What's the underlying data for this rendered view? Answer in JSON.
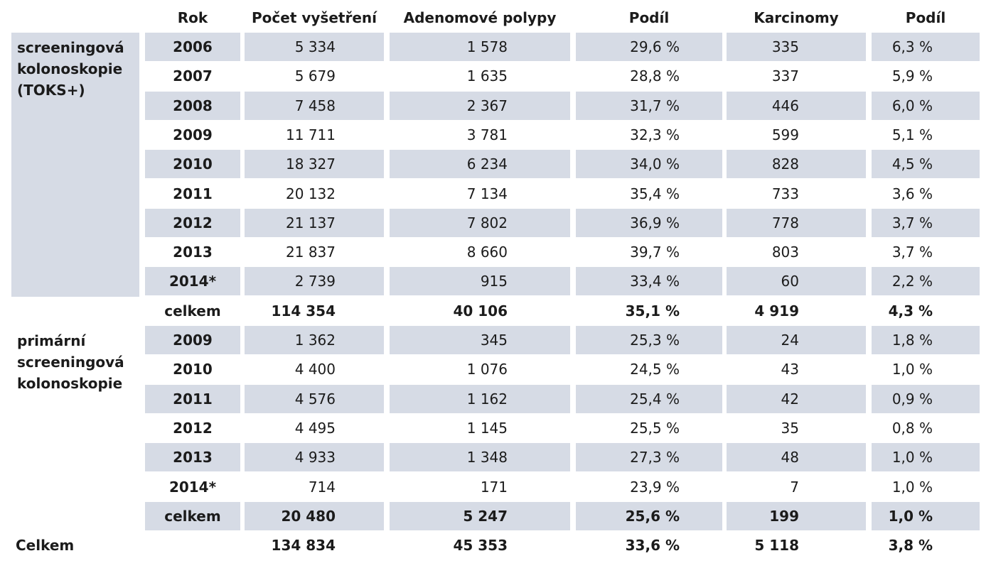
{
  "headers": [
    "Rok",
    "Počet vyšetření",
    "Adenomové polypy",
    "Podíl",
    "Karcinomy",
    "Podíl"
  ],
  "groups": [
    {
      "label": "screeningová\nkolonoskopie\n(TOKS+)",
      "rows": [
        {
          "year": "2006",
          "count": "5 334",
          "polyps": "1 578",
          "share_polyps": "29,6 %",
          "carcinoma": "335",
          "share_carcinoma": "6,3 %"
        },
        {
          "year": "2007",
          "count": "5 679",
          "polyps": "1 635",
          "share_polyps": "28,8 %",
          "carcinoma": "337",
          "share_carcinoma": "5,9 %"
        },
        {
          "year": "2008",
          "count": "7 458",
          "polyps": "2 367",
          "share_polyps": "31,7 %",
          "carcinoma": "446",
          "share_carcinoma": "6,0 %"
        },
        {
          "year": "2009",
          "count": "11 711",
          "polyps": "3 781",
          "share_polyps": "32,3 %",
          "carcinoma": "599",
          "share_carcinoma": "5,1 %"
        },
        {
          "year": "2010",
          "count": "18 327",
          "polyps": "6 234",
          "share_polyps": "34,0 %",
          "carcinoma": "828",
          "share_carcinoma": "4,5 %"
        },
        {
          "year": "2011",
          "count": "20 132",
          "polyps": "7 134",
          "share_polyps": "35,4 %",
          "carcinoma": "733",
          "share_carcinoma": "3,6 %"
        },
        {
          "year": "2012",
          "count": "21 137",
          "polyps": "7 802",
          "share_polyps": "36,9 %",
          "carcinoma": "778",
          "share_carcinoma": "3,7 %"
        },
        {
          "year": "2013",
          "count": "21 837",
          "polyps": "8 660",
          "share_polyps": "39,7 %",
          "carcinoma": "803",
          "share_carcinoma": "3,7 %"
        },
        {
          "year": "2014*",
          "count": "2 739",
          "polyps": "915",
          "share_polyps": "33,4 %",
          "carcinoma": "60",
          "share_carcinoma": "2,2 %"
        }
      ],
      "total": {
        "label": "celkem",
        "count": "114 354",
        "polyps": "40 106",
        "share_polyps": "35,1 %",
        "carcinoma": "4 919",
        "share_carcinoma": "4,3 %"
      }
    },
    {
      "label": "primární\nscreeningová\nkolonoskopie",
      "rows": [
        {
          "year": "2009",
          "count": "1 362",
          "polyps": "345",
          "share_polyps": "25,3 %",
          "carcinoma": "24",
          "share_carcinoma": "1,8 %"
        },
        {
          "year": "2010",
          "count": "4 400",
          "polyps": "1 076",
          "share_polyps": "24,5 %",
          "carcinoma": "43",
          "share_carcinoma": "1,0 %"
        },
        {
          "year": "2011",
          "count": "4 576",
          "polyps": "1 162",
          "share_polyps": "25,4 %",
          "carcinoma": "42",
          "share_carcinoma": "0,9 %"
        },
        {
          "year": "2012",
          "count": "4 495",
          "polyps": "1 145",
          "share_polyps": "25,5 %",
          "carcinoma": "35",
          "share_carcinoma": "0,8 %"
        },
        {
          "year": "2013",
          "count": "4 933",
          "polyps": "1 348",
          "share_polyps": "27,3 %",
          "carcinoma": "48",
          "share_carcinoma": "1,0 %"
        },
        {
          "year": "2014*",
          "count": "714",
          "polyps": "171",
          "share_polyps": "23,9 %",
          "carcinoma": "7",
          "share_carcinoma": "1,0 %"
        }
      ],
      "total": {
        "label": "celkem",
        "count": "20 480",
        "polyps": "5 247",
        "share_polyps": "25,6 %",
        "carcinoma": "199",
        "share_carcinoma": "1,0 %"
      }
    }
  ],
  "grand_total": {
    "label": "Celkem",
    "count": "134 834",
    "polyps": "45 353",
    "share_polyps": "33,6 %",
    "carcinoma": "5 118",
    "share_carcinoma": "3,8 %"
  },
  "colors": {
    "row_shade": "#d6dbe5",
    "text": "#1b1b1b"
  }
}
